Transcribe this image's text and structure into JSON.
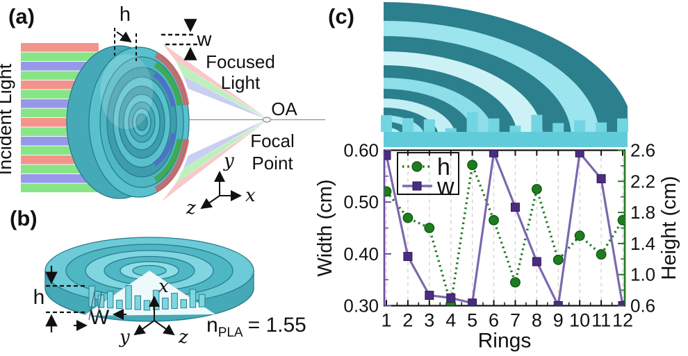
{
  "figure": {
    "panel_a": {
      "label": "(a)",
      "incident_light_label": "Incident Light",
      "height_annotation": "h",
      "width_annotation": "w",
      "focused_light_line1": "Focused",
      "focused_light_line2": "Light",
      "optical_axis_label": "OA",
      "focal_point_line1": "Focal",
      "focal_point_line2": "Point",
      "axis_x": "x",
      "axis_y": "y",
      "axis_z": "z",
      "incident_stripe_colors": [
        "#f28b82",
        "#7de37d",
        "#8f8fe8",
        "#7de37d"
      ]
    },
    "panel_b": {
      "label": "(b)",
      "height_annotation": "h",
      "width_annotation": "W",
      "refractive_index_symbol": "n",
      "refractive_index_subscript": "PLA",
      "refractive_index_value": "= 1.55",
      "axis_x": "x",
      "axis_y": "y",
      "axis_z": "z"
    },
    "panel_c": {
      "label": "(c)"
    }
  },
  "chart_data": {
    "type": "line",
    "title": "",
    "xlabel": "Rings",
    "x": [
      1,
      2,
      3,
      4,
      5,
      6,
      7,
      8,
      9,
      10,
      11,
      12
    ],
    "x_tick_labels": [
      "1",
      "2",
      "3",
      "4",
      "5",
      "6",
      "7",
      "8",
      "9",
      "10",
      "11",
      "12"
    ],
    "left_axis": {
      "label": "Width (cm)",
      "range": [
        0.3,
        0.6
      ],
      "major_ticks": [
        0.3,
        0.4,
        0.5,
        0.6
      ],
      "tick_labels": [
        "0.30",
        "0.40",
        "0.50",
        "0.60"
      ],
      "minor_ticks": [
        0.35,
        0.45,
        0.55
      ],
      "color": "#6a4fa0"
    },
    "right_axis": {
      "label": "Height (cm)",
      "range": [
        0.6,
        2.6
      ],
      "major_ticks": [
        0.6,
        1.0,
        1.4,
        1.8,
        2.2,
        2.6
      ],
      "tick_labels": [
        "0.6",
        "1.0",
        "1.4",
        "1.8",
        "2.2",
        "2.6"
      ],
      "minor_ticks": [
        0.8,
        1.2,
        1.6,
        2.0,
        2.4
      ],
      "color": "#1e7d1e"
    },
    "grid": "vertical-dashed",
    "legend_position": "top-left",
    "series": [
      {
        "name": "h",
        "axis": "right",
        "line_style": "dotted",
        "marker": "circle",
        "line_color": "#1e7d1e",
        "marker_color": "#1e7d1e",
        "marker_edge": "#0c4d12",
        "values": [
          2.07,
          1.73,
          1.6,
          0.62,
          2.41,
          1.7,
          0.9,
          2.1,
          1.19,
          1.5,
          1.26,
          1.7
        ]
      },
      {
        "name": "w",
        "axis": "left",
        "line_style": "solid",
        "marker": "square",
        "line_color": "#7b68ae",
        "marker_color": "#4a2d80",
        "marker_edge": "#2d1a52",
        "values": [
          0.59,
          0.395,
          0.32,
          0.315,
          0.305,
          0.595,
          0.49,
          0.385,
          0.3,
          0.595,
          0.545,
          0.3
        ]
      }
    ]
  },
  "colors": {
    "lens_teal": "#58c1cd",
    "lens_teal_dark": "#3d9dac",
    "lens_outline": "#2a7b8a",
    "render_shell_dark": "#2c7f8d",
    "render_shell_light": "#9ce4ee",
    "render_base_strip": "#60ccda",
    "render_bar": "#72d6e2",
    "grid_gray": "#cfcfcf",
    "beam_red": "#f08080",
    "beam_green": "#66dd66",
    "beam_blue": "#7f8fe0"
  }
}
